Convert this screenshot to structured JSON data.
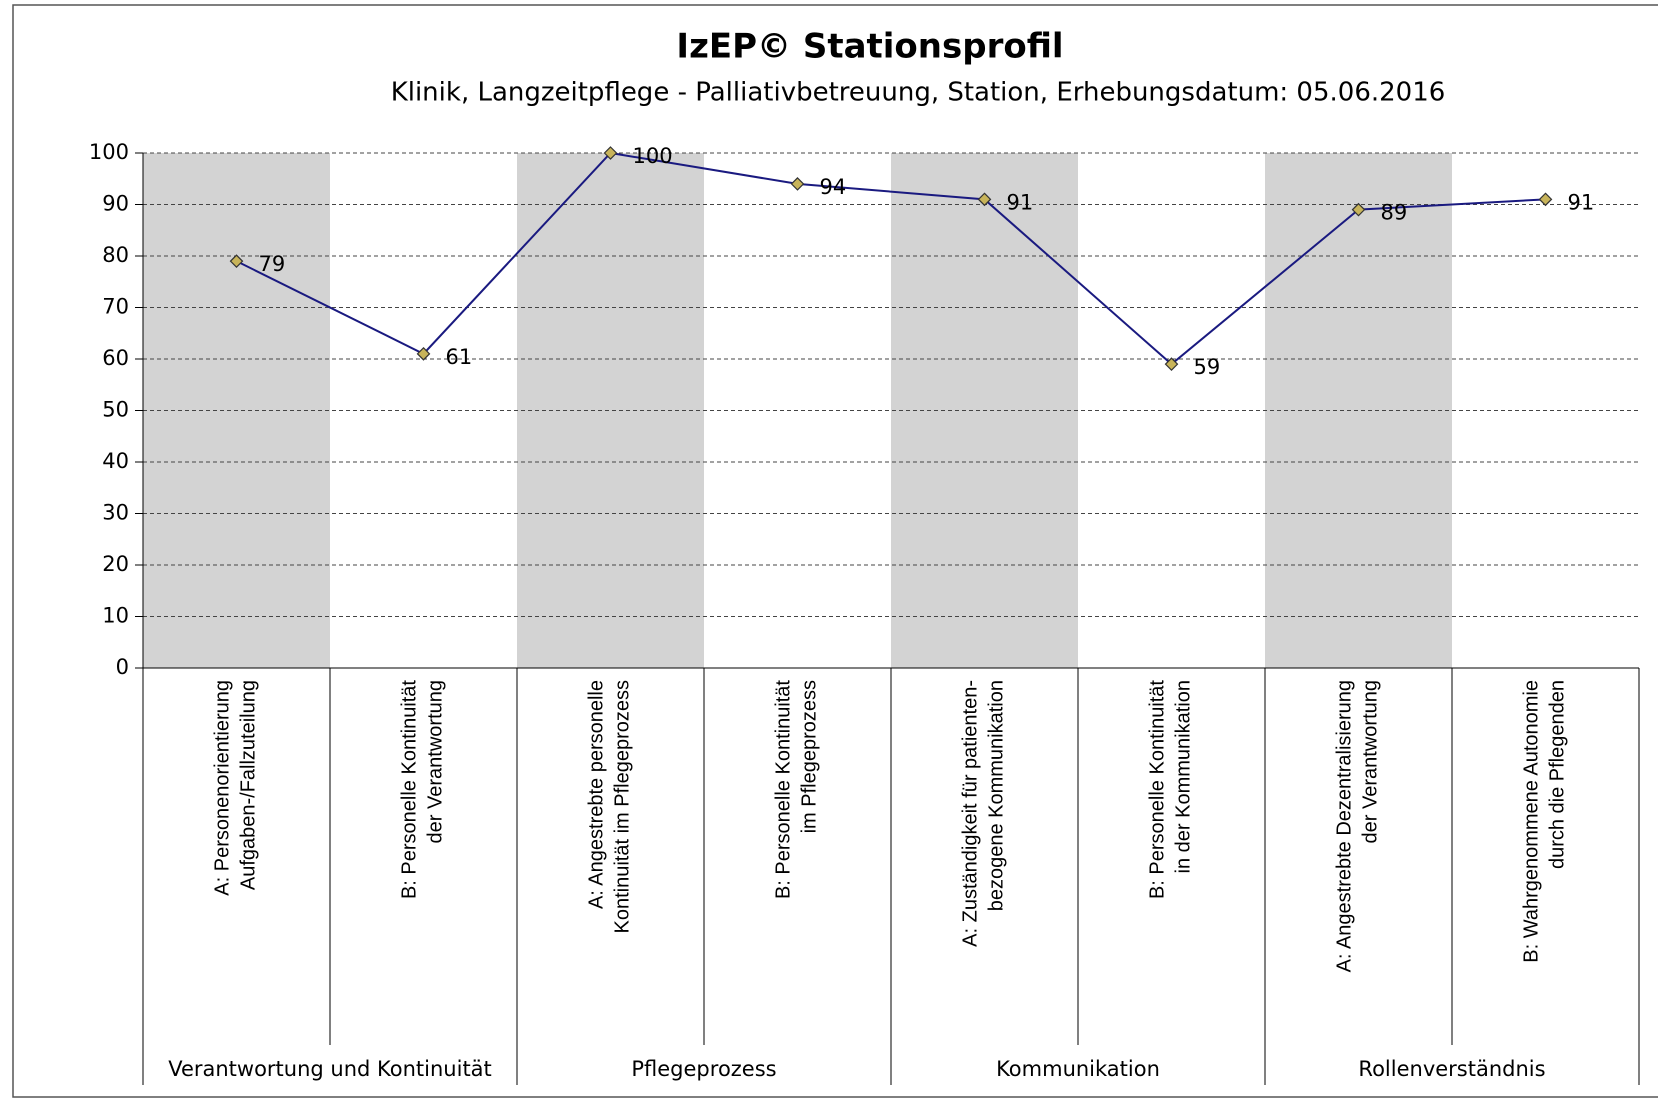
{
  "chart_data": {
    "type": "line",
    "title": "IzEP© Stationsprofil",
    "subtitle": "Klinik, Langzeitpflege - Palliativbetreuung, Station, Erhebungsdatum: 05.06.2016",
    "categories": [
      "A: Personenorientierung\nAufgaben-/Fallzuteilung",
      "B: Personelle Kontinuität\nder Verantwortung",
      "A: Angestrebte personelle\nKontinuität im Pflegeprozess",
      "B: Personelle Kontinuität\nim Pflegeprozess",
      "A: Zuständigkeit für patienten-\nbezogene Kommunikation",
      "B: Personelle Kontinuität\nin der Kommunikation",
      "A: Angestrebte Dezentralisierung\nder Verantwortung",
      "B: Wahrgenommene Autonomie\ndurch die Pflegenden"
    ],
    "groups": [
      "Verantwortung und Kontinuität",
      "Pflegeprozess",
      "Kommunikation",
      "Rollenverständnis"
    ],
    "series": [
      {
        "color": "#1a1a80",
        "marker_color": "#c8b45a",
        "values": [
          79,
          61,
          100,
          94,
          91,
          59,
          89,
          91
        ]
      }
    ],
    "ylim": [
      0,
      100
    ],
    "yticks": [
      0,
      10,
      20,
      30,
      40,
      50,
      60,
      70,
      80,
      90,
      100
    ],
    "grid": true,
    "band_color": "#d3d3d3"
  }
}
